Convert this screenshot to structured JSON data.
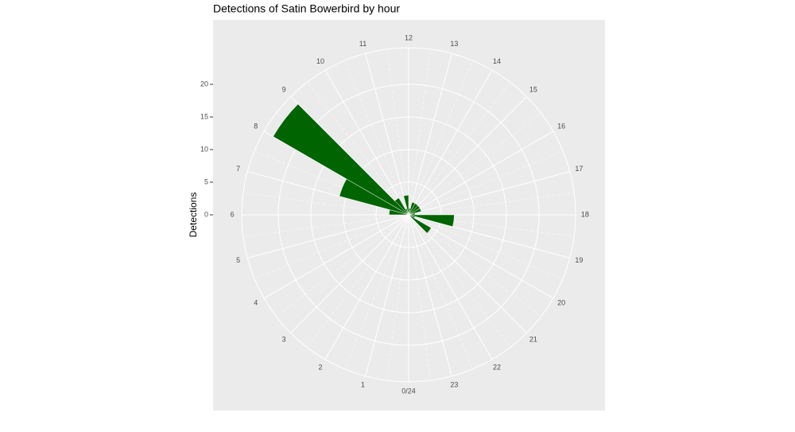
{
  "chart_data": {
    "type": "polar-bar",
    "title": "Detections of Satin Bowerbird by hour",
    "y_label": "Detections",
    "categories": [
      "0/24",
      "1",
      "2",
      "3",
      "4",
      "5",
      "6",
      "7",
      "8",
      "9",
      "10",
      "11",
      "12",
      "13",
      "14",
      "15",
      "16",
      "17",
      "18",
      "19",
      "20",
      "21",
      "22",
      "23"
    ],
    "values": [
      0,
      0,
      0,
      0,
      0,
      0,
      3,
      11,
      24,
      3,
      1,
      3,
      1,
      2,
      2,
      2,
      2,
      1,
      7,
      1,
      4,
      0,
      0,
      0
    ],
    "color": "#006400",
    "xlim": [
      0,
      24
    ],
    "ylim": [
      0,
      25.6
    ],
    "yticks": [
      0,
      5,
      10,
      15,
      20
    ],
    "grid": true
  }
}
